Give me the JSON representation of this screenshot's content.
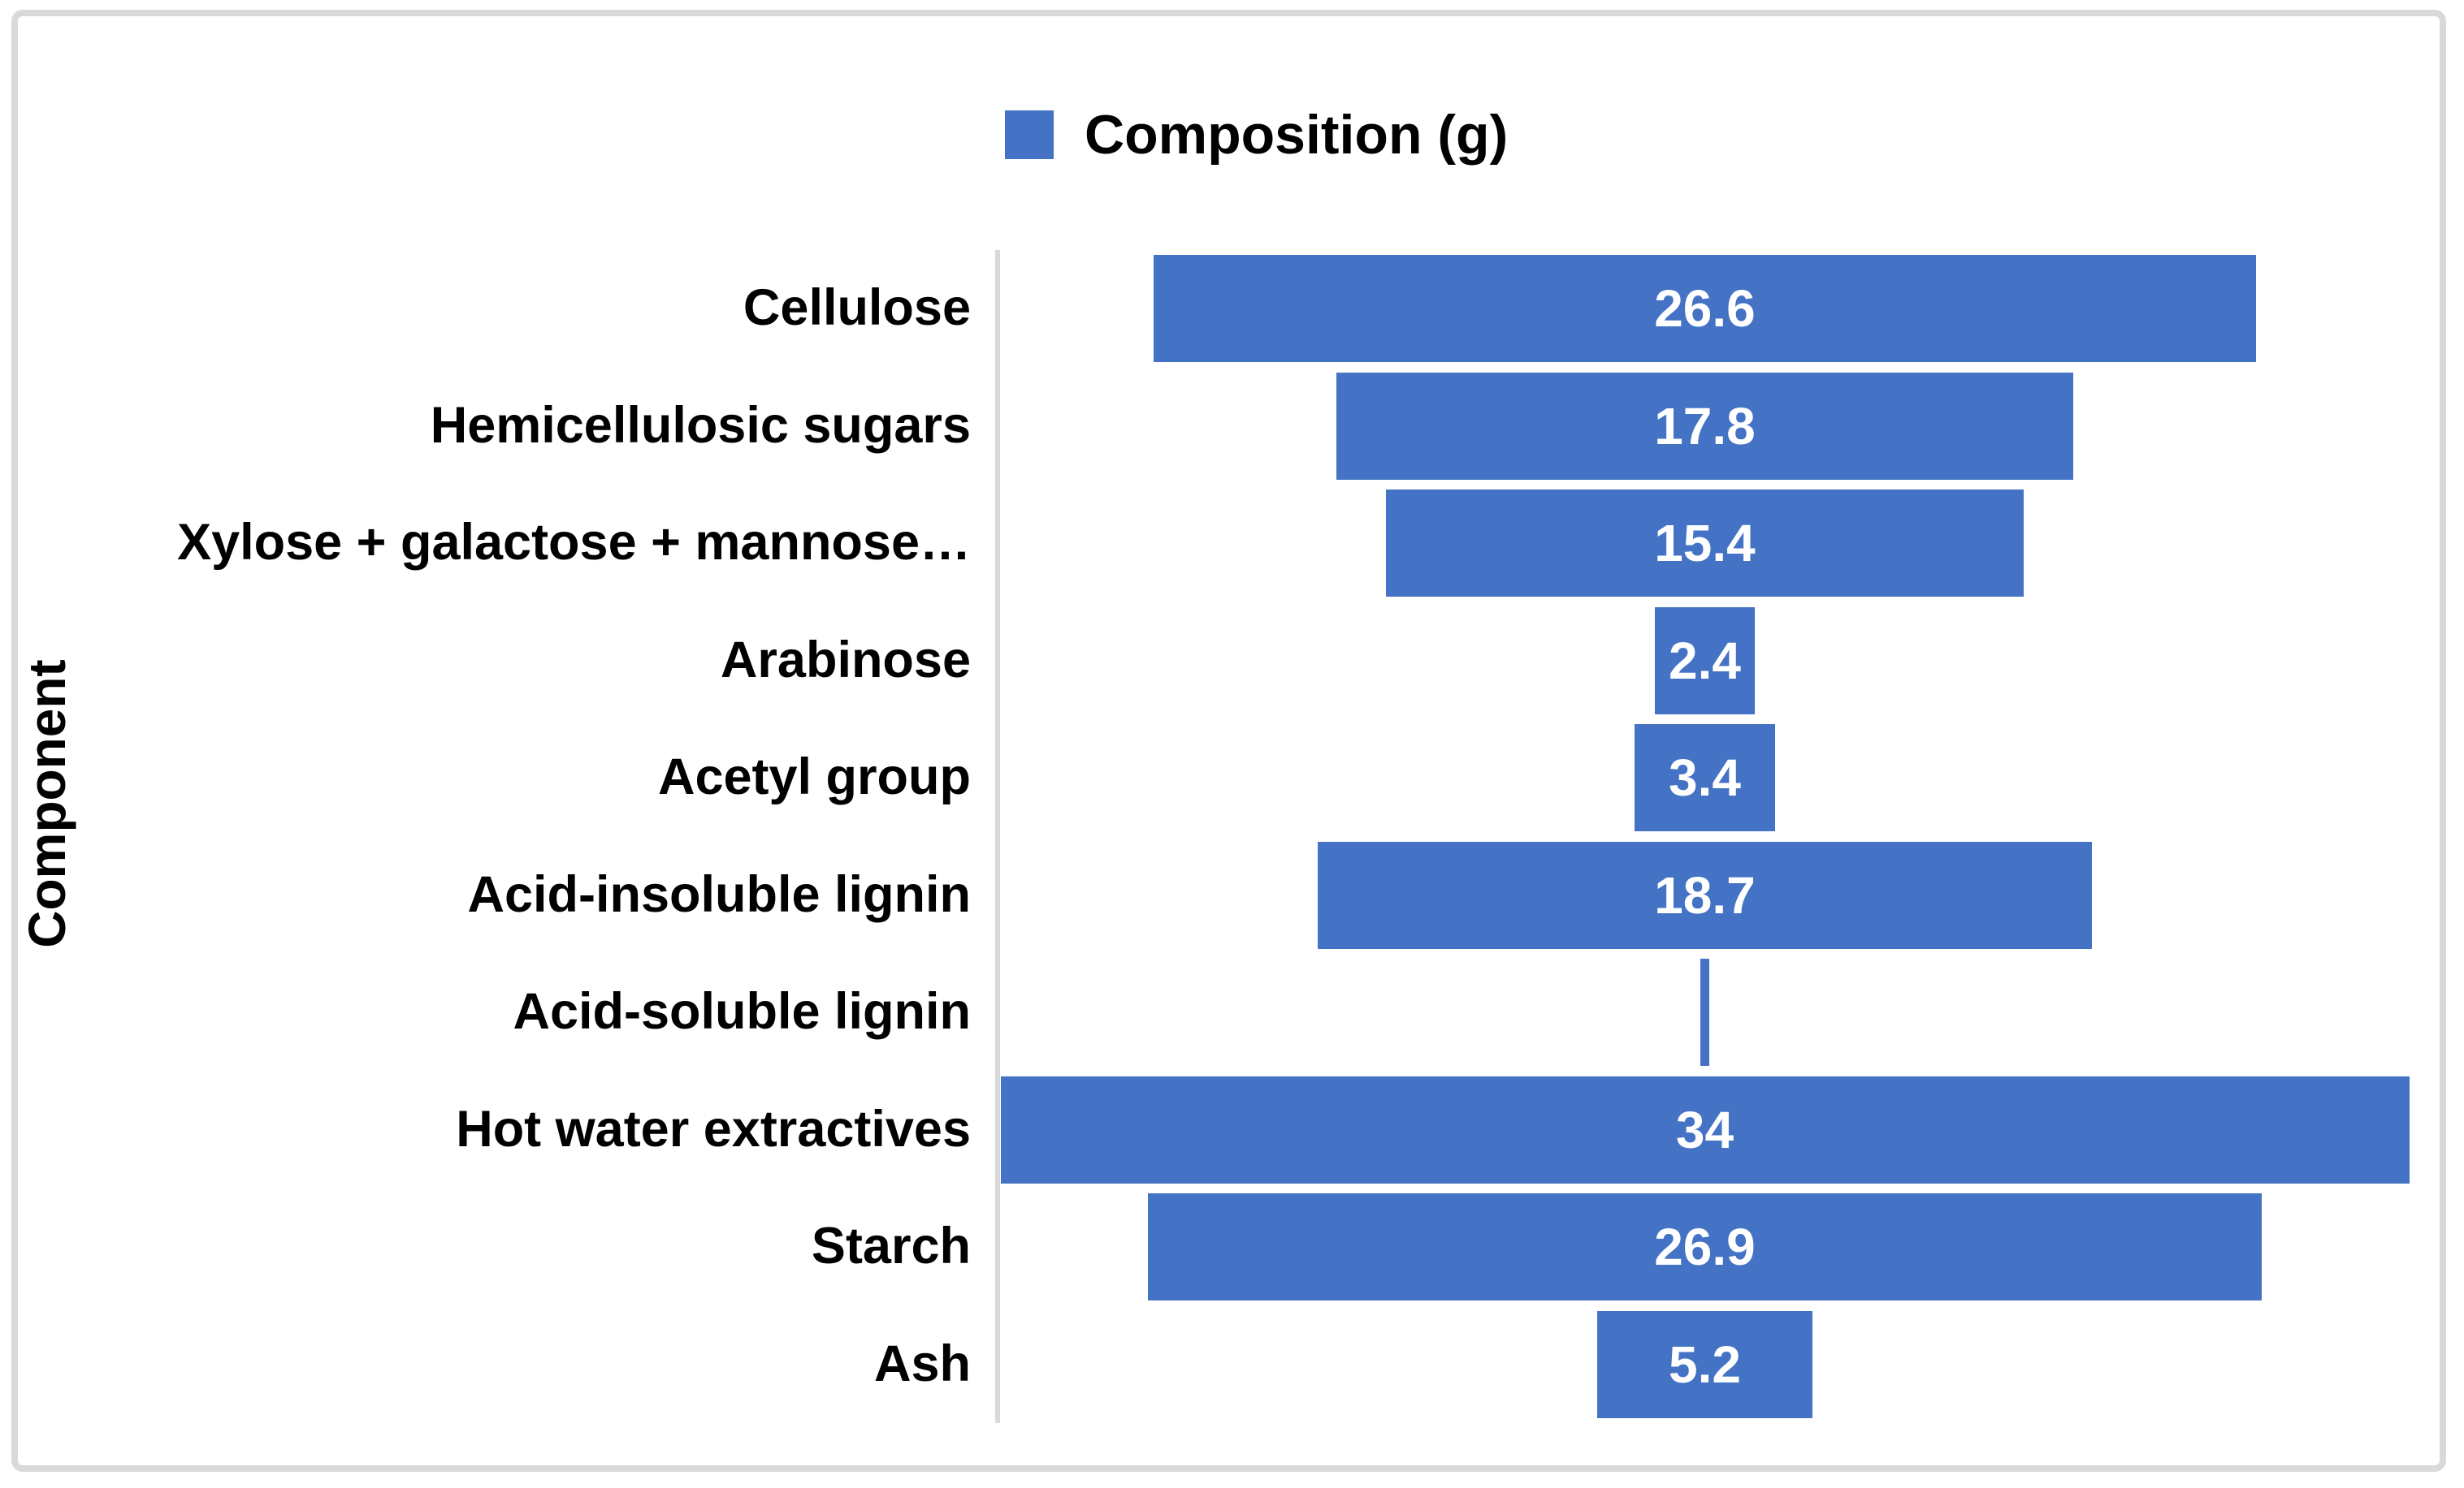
{
  "chart": {
    "legend": {
      "label": "Composition (g)"
    },
    "y_axis_title": "Component",
    "colors": {
      "bar": "#4472c4",
      "axis_line": "#d9d9d9",
      "frame_border": "#d9d9d9",
      "background": "#ffffff",
      "text": "#000000",
      "value_label": "#ffffff"
    }
  },
  "chart_data": {
    "type": "bar",
    "subtype": "funnel-centered-horizontal",
    "title": "",
    "xlabel": "",
    "ylabel": "Component",
    "legend_position": "top",
    "gridlines": false,
    "series_name": "Composition (g)",
    "categories": [
      "Cellulose",
      "Hemicellulosic sugars",
      "Xylose + galactose + mannose…",
      "Arabinose",
      "Acetyl group",
      "Acid-insoluble lignin",
      "Acid-soluble lignin",
      "Hot water extractives",
      "Starch",
      "Ash"
    ],
    "values": [
      26.6,
      17.8,
      15.4,
      2.4,
      3.4,
      18.7,
      0.2,
      34,
      26.9,
      5.2
    ],
    "data_labels": [
      "26.6",
      "17.8",
      "15.4",
      "2.4",
      "3.4",
      "18.7",
      "",
      "34",
      "26.9",
      "5.2"
    ],
    "xlim": [
      0,
      34
    ]
  }
}
